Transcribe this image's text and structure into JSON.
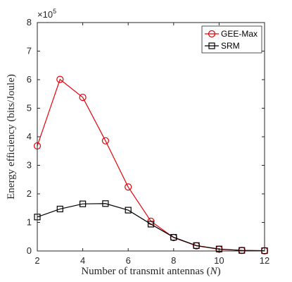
{
  "chart_data": {
    "type": "line",
    "title": "",
    "xlabel": "Number of transmit antennas (N)",
    "xlabel_parts": {
      "text": "Number of transmit antennas (",
      "var": "N",
      "close": ")"
    },
    "ylabel": "Energy efficiency (bits/Joule)",
    "y_exponent": {
      "base": "×10",
      "power": "5"
    },
    "xlim": [
      2,
      12
    ],
    "ylim": [
      0,
      8
    ],
    "xticks": [
      "2",
      "4",
      "6",
      "8",
      "10",
      "12"
    ],
    "yticks": [
      "0",
      "1",
      "2",
      "3",
      "4",
      "5",
      "6",
      "7",
      "8"
    ],
    "grid": false,
    "legend_position": "top-right",
    "x": [
      2,
      3,
      4,
      5,
      6,
      7,
      8,
      9,
      10,
      11,
      12
    ],
    "series": [
      {
        "name": "GEE-Max",
        "color": "#e8000b",
        "marker": "circle",
        "values": [
          3.68,
          6.01,
          5.38,
          3.86,
          2.24,
          1.04,
          0.47,
          0.18,
          0.06,
          0.02,
          0.01
        ]
      },
      {
        "name": "SRM",
        "color": "#000000",
        "marker": "square",
        "values": [
          1.19,
          1.47,
          1.65,
          1.66,
          1.43,
          0.94,
          0.48,
          0.19,
          0.07,
          0.02,
          0.01
        ]
      }
    ]
  }
}
